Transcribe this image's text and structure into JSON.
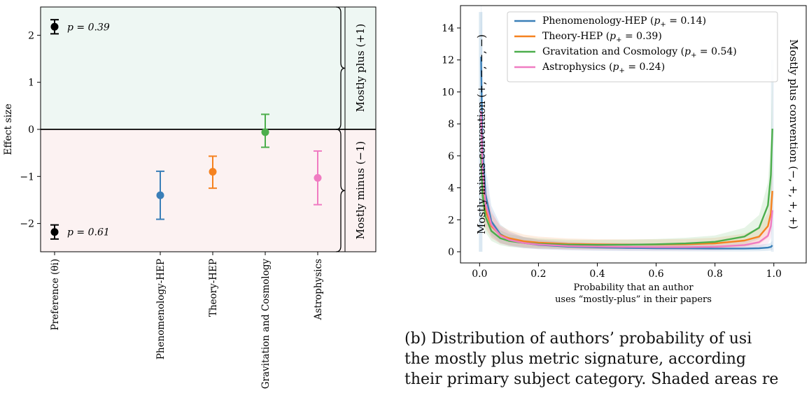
{
  "chart_data": [
    {
      "type": "scatter",
      "ylabel": "Effect size",
      "ylim": [
        -2.6,
        2.6
      ],
      "yticks": [
        -2,
        -1,
        0,
        1,
        2
      ],
      "ytick_labels": [
        "−2",
        "−1",
        "0",
        "1",
        "2"
      ],
      "categories": [
        "Preference (θi)",
        "Phenomenology-HEP",
        "Theory-HEP",
        "Gravitation and Cosmology",
        "Astrophysics"
      ],
      "regions": [
        {
          "label": "Mostly plus (+1)",
          "range": [
            0,
            2.6
          ],
          "color": "#eef7f3"
        },
        {
          "label": "Mostly minus (−1)",
          "range": [
            -2.6,
            0
          ],
          "color": "#fcf2f2"
        }
      ],
      "preference_points": [
        {
          "value": 2.18,
          "lower": 2.03,
          "upper": 2.33,
          "label": "p = 0.39",
          "color": "#000000"
        },
        {
          "value": -2.18,
          "lower": -2.33,
          "upper": -2.03,
          "label": "p = 0.61",
          "color": "#000000"
        }
      ],
      "points": [
        {
          "category": "Phenomenology-HEP",
          "value": -1.4,
          "lower": -1.91,
          "upper": -0.89,
          "color": "#3a7fb8"
        },
        {
          "category": "Theory-HEP",
          "value": -0.9,
          "lower": -1.25,
          "upper": -0.57,
          "color": "#f58220"
        },
        {
          "category": "Gravitation and Cosmology",
          "value": -0.06,
          "lower": -0.38,
          "upper": 0.32,
          "color": "#4cae4c"
        },
        {
          "category": "Astrophysics",
          "value": -1.03,
          "lower": -1.6,
          "upper": -0.46,
          "color": "#f07cc2"
        }
      ]
    },
    {
      "type": "line",
      "xlabel_line1": "Probability that an author",
      "xlabel_line2": "uses “mostly-plus” in their papers",
      "xlim": [
        -0.065,
        1.11
      ],
      "ylim": [
        -0.7,
        15.4
      ],
      "xticks": [
        0.0,
        0.2,
        0.4,
        0.6,
        0.8,
        1.0
      ],
      "xtick_labels": [
        "0.0",
        "0.2",
        "0.4",
        "0.6",
        "0.8",
        "1.0"
      ],
      "yticks": [
        0,
        2,
        4,
        6,
        8,
        10,
        12,
        14
      ],
      "ytick_labels": [
        "0",
        "2",
        "4",
        "6",
        "8",
        "10",
        "12",
        "14"
      ],
      "left_annotation": "Mostly minus convention (+, −, −, −)",
      "right_annotation": "Mostly plus convention (−, +, +, +)",
      "legend_position": "top-right",
      "series": [
        {
          "name": "Phenomenology-HEP",
          "p_label": "0.14",
          "color": "#3a7fb8",
          "x": [
            0.005,
            0.01,
            0.02,
            0.04,
            0.07,
            0.1,
            0.15,
            0.2,
            0.3,
            0.4,
            0.5,
            0.6,
            0.7,
            0.8,
            0.9,
            0.95,
            0.98,
            0.99,
            0.995
          ],
          "y": [
            12.2,
            6.5,
            3.6,
            1.9,
            1.1,
            0.8,
            0.55,
            0.43,
            0.32,
            0.27,
            0.24,
            0.22,
            0.21,
            0.2,
            0.2,
            0.22,
            0.26,
            0.3,
            0.4
          ]
        },
        {
          "name": "Theory-HEP",
          "p_label": "0.39",
          "color": "#f58220",
          "x": [
            0.005,
            0.01,
            0.02,
            0.04,
            0.07,
            0.1,
            0.15,
            0.2,
            0.3,
            0.4,
            0.5,
            0.6,
            0.7,
            0.8,
            0.9,
            0.95,
            0.98,
            0.99,
            0.995
          ],
          "y": [
            6.0,
            4.0,
            2.6,
            1.6,
            1.05,
            0.85,
            0.66,
            0.57,
            0.49,
            0.46,
            0.45,
            0.45,
            0.47,
            0.52,
            0.7,
            0.95,
            1.6,
            2.4,
            3.8
          ]
        },
        {
          "name": "Gravitation and Cosmology",
          "p_label": "0.54",
          "color": "#4cae4c",
          "x": [
            0.005,
            0.01,
            0.02,
            0.04,
            0.07,
            0.1,
            0.15,
            0.2,
            0.3,
            0.4,
            0.5,
            0.6,
            0.7,
            0.8,
            0.9,
            0.95,
            0.98,
            0.99,
            0.995
          ],
          "y": [
            6.1,
            3.6,
            2.2,
            1.3,
            0.85,
            0.68,
            0.55,
            0.49,
            0.44,
            0.43,
            0.44,
            0.47,
            0.52,
            0.62,
            0.95,
            1.5,
            2.9,
            4.8,
            7.7
          ]
        },
        {
          "name": "Astrophysics",
          "p_label": "0.24",
          "color": "#f07cc2",
          "x": [
            0.005,
            0.01,
            0.02,
            0.04,
            0.07,
            0.1,
            0.15,
            0.2,
            0.3,
            0.4,
            0.5,
            0.6,
            0.7,
            0.8,
            0.9,
            0.95,
            0.98,
            0.99,
            0.995
          ],
          "y": [
            8.8,
            5.2,
            3.0,
            1.7,
            1.0,
            0.75,
            0.55,
            0.45,
            0.36,
            0.32,
            0.3,
            0.29,
            0.29,
            0.31,
            0.42,
            0.6,
            1.0,
            1.6,
            2.6
          ]
        }
      ]
    }
  ],
  "caption": {
    "line1": "(b) Distribution of authors’ probability of usi",
    "line2": "the mostly plus metric signature, according",
    "line3": "their primary subject category. Shaded areas re"
  }
}
